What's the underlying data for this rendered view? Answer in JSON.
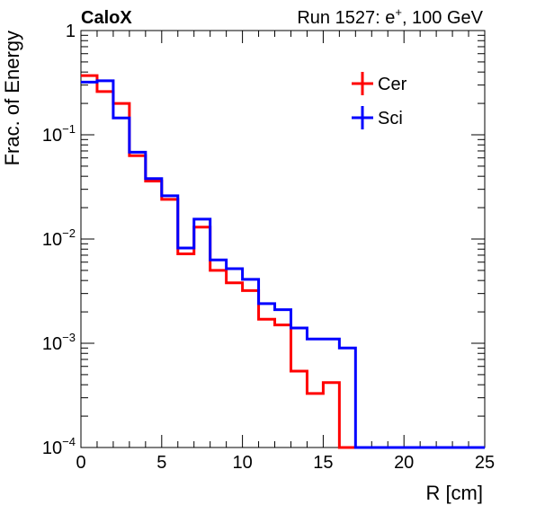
{
  "chart_data": {
    "type": "line",
    "style": "step-histogram",
    "experiment_label": "CaloX",
    "run_label_prefix": "Run 1527: e",
    "run_label_sup": "+",
    "run_label_suffix": ", 100 GeV",
    "xlabel": "R [cm]",
    "ylabel": "Frac. of Energy",
    "xlim": [
      0,
      25
    ],
    "ylim": [
      0.0001,
      1
    ],
    "yscale": "log",
    "grid": false,
    "legend_position": "top-right",
    "x_tick_labels": [
      "0",
      "5",
      "10",
      "15",
      "20",
      "25"
    ],
    "y_tick_labels": [
      {
        "base": "1",
        "exp": ""
      },
      {
        "base": "10",
        "exp": "−1"
      },
      {
        "base": "10",
        "exp": "−2"
      },
      {
        "base": "10",
        "exp": "−3"
      },
      {
        "base": "10",
        "exp": "−4"
      }
    ],
    "bin_edges": [
      0,
      1,
      2,
      3,
      4,
      5,
      6,
      7,
      8,
      9,
      10,
      11,
      12,
      13,
      14,
      15,
      16,
      17,
      18,
      19,
      20,
      21,
      22,
      23,
      24,
      25
    ],
    "series": [
      {
        "name": "Cer",
        "color": "#ff0000",
        "values": [
          0.37,
          0.26,
          0.2,
          0.063,
          0.036,
          0.024,
          0.0072,
          0.013,
          0.005,
          0.0038,
          0.0032,
          0.0017,
          0.0015,
          0.00054,
          0.00033,
          0.00042,
          0.0001,
          0.0001,
          0.0001,
          0.0001,
          0.0001,
          0.0001,
          0.0001,
          0.0001,
          0.0001
        ]
      },
      {
        "name": "Sci",
        "color": "#0000ff",
        "values": [
          0.32,
          0.33,
          0.145,
          0.068,
          0.038,
          0.026,
          0.0082,
          0.0155,
          0.0063,
          0.0052,
          0.0041,
          0.0024,
          0.0021,
          0.0014,
          0.0011,
          0.0011,
          0.0009,
          0.0001,
          0.0001,
          0.0001,
          0.0001,
          0.0001,
          0.0001,
          0.0001,
          0.0001
        ]
      }
    ]
  }
}
